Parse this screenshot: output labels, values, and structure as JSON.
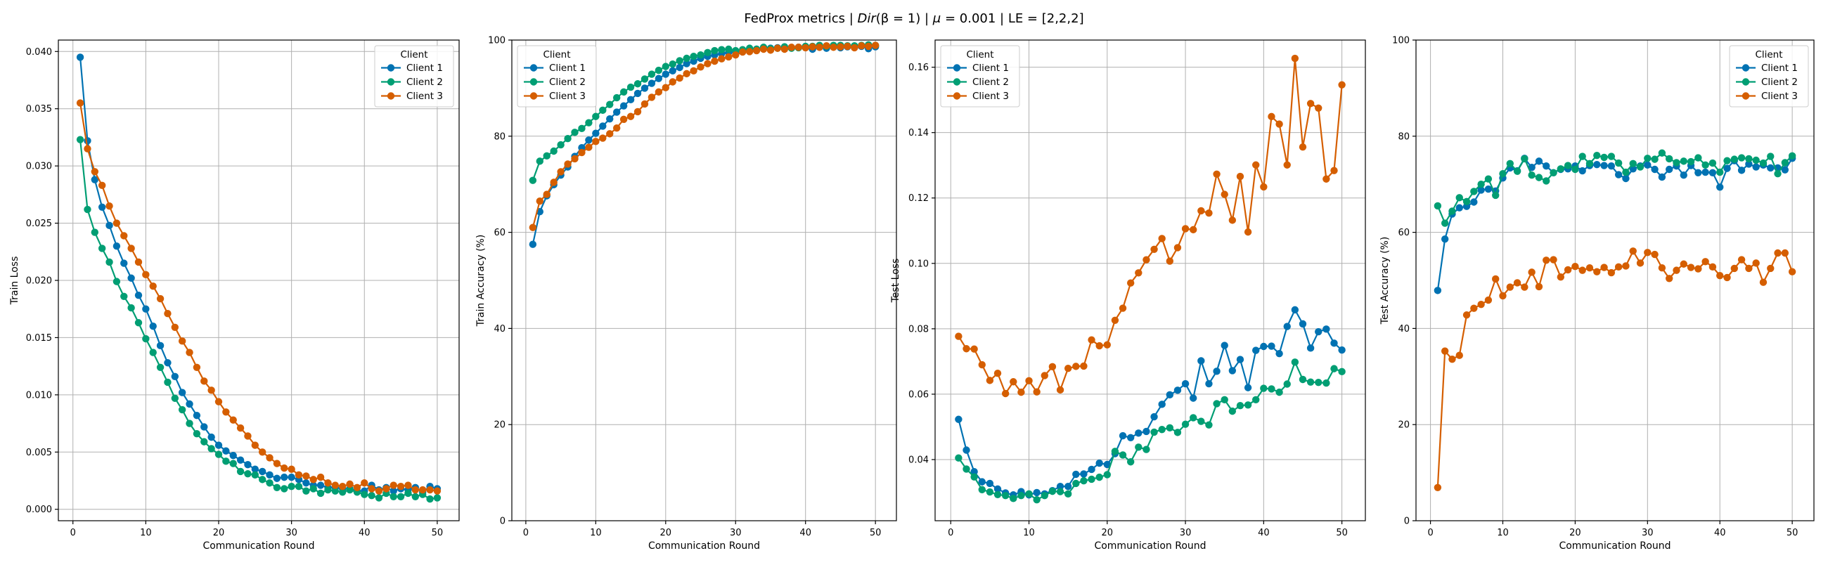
{
  "figure": {
    "title": "FedProx metrics | Dir(β = 1) | μ = 0.001 | LE = [2,2,2]",
    "title_parts": {
      "prefix": "FedProx metrics | ",
      "dir": "Dir",
      "beta": "(β = 1)",
      "mid": " | ",
      "mu": "μ",
      "mu_value": " = 0.001 | LE = [2,2,2]"
    }
  },
  "colors": {
    "Client 1": "#0072b2",
    "Client 2": "#009e73",
    "Client 3": "#d55e00",
    "grid": "#b0b0b0",
    "axes": "#000000"
  },
  "chart_data": [
    {
      "type": "line",
      "xlabel": "Communication Round",
      "ylabel": "Train Loss",
      "xlim": [
        -2.0,
        53.0
      ],
      "ylim": [
        -0.001,
        0.041
      ],
      "xticks": [
        0,
        10,
        20,
        30,
        40,
        50
      ],
      "xtick_labels": [
        "0",
        "10",
        "20",
        "30",
        "40",
        "50"
      ],
      "yticks": [
        0.0,
        0.005,
        0.01,
        0.015,
        0.02,
        0.025,
        0.03,
        0.035,
        0.04
      ],
      "ytick_labels": [
        "0.000",
        "0.005",
        "0.010",
        "0.015",
        "0.020",
        "0.025",
        "0.030",
        "0.035",
        "0.040"
      ],
      "grid": true,
      "legend": {
        "title": "Client",
        "placement": "top-right"
      },
      "x": [
        1,
        2,
        3,
        4,
        5,
        6,
        7,
        8,
        9,
        10,
        11,
        12,
        13,
        14,
        15,
        16,
        17,
        18,
        19,
        20,
        21,
        22,
        23,
        24,
        25,
        26,
        27,
        28,
        29,
        30,
        31,
        32,
        33,
        34,
        35,
        36,
        37,
        38,
        39,
        40,
        41,
        42,
        43,
        44,
        45,
        46,
        47,
        48,
        49,
        50
      ],
      "series": [
        {
          "name": "Client 1",
          "values": [
            0.0395,
            0.0322,
            0.0288,
            0.0264,
            0.0248,
            0.023,
            0.0215,
            0.0202,
            0.0187,
            0.0175,
            0.016,
            0.0143,
            0.0128,
            0.0116,
            0.0102,
            0.0092,
            0.0082,
            0.0072,
            0.0063,
            0.0056,
            0.0051,
            0.0047,
            0.0043,
            0.0039,
            0.0035,
            0.0033,
            0.003,
            0.0027,
            0.0028,
            0.0028,
            0.0026,
            0.0023,
            0.0021,
            0.0021,
            0.0019,
            0.0019,
            0.0018,
            0.0018,
            0.0016,
            0.0016,
            0.0021,
            0.0017,
            0.0019,
            0.0016,
            0.0018,
            0.0017,
            0.0019,
            0.0015,
            0.002,
            0.0018
          ]
        },
        {
          "name": "Client 2",
          "values": [
            0.0323,
            0.0262,
            0.0242,
            0.0228,
            0.0216,
            0.0199,
            0.0186,
            0.0176,
            0.0163,
            0.0149,
            0.0137,
            0.0124,
            0.0111,
            0.0097,
            0.0087,
            0.0075,
            0.0066,
            0.0059,
            0.0053,
            0.0048,
            0.0042,
            0.004,
            0.0033,
            0.0031,
            0.003,
            0.0026,
            0.0023,
            0.0019,
            0.0018,
            0.002,
            0.002,
            0.0016,
            0.0018,
            0.0014,
            0.0017,
            0.0016,
            0.0015,
            0.0017,
            0.0015,
            0.0013,
            0.0012,
            0.001,
            0.0014,
            0.0011,
            0.0011,
            0.0014,
            0.0011,
            0.0013,
            0.0009,
            0.001
          ]
        },
        {
          "name": "Client 3",
          "values": [
            0.0355,
            0.0315,
            0.0295,
            0.0283,
            0.0265,
            0.025,
            0.0239,
            0.0228,
            0.0216,
            0.0205,
            0.0195,
            0.0184,
            0.0171,
            0.0159,
            0.0147,
            0.0137,
            0.0124,
            0.0112,
            0.0104,
            0.0094,
            0.0085,
            0.0078,
            0.0071,
            0.0064,
            0.0056,
            0.005,
            0.0045,
            0.004,
            0.0036,
            0.0035,
            0.003,
            0.0029,
            0.0026,
            0.0028,
            0.0023,
            0.0021,
            0.002,
            0.0022,
            0.0019,
            0.0023,
            0.0018,
            0.0016,
            0.0018,
            0.0021,
            0.002,
            0.0021,
            0.0017,
            0.0017,
            0.0017,
            0.0016
          ]
        }
      ]
    },
    {
      "type": "line",
      "xlabel": "Communication Round",
      "ylabel": "Train Accuracy (%)",
      "xlim": [
        -2.0,
        53.0
      ],
      "ylim": [
        0,
        100
      ],
      "xticks": [
        0,
        10,
        20,
        30,
        40,
        50
      ],
      "xtick_labels": [
        "0",
        "10",
        "20",
        "30",
        "40",
        "50"
      ],
      "yticks": [
        0,
        20,
        40,
        60,
        80,
        100
      ],
      "ytick_labels": [
        "0",
        "20",
        "40",
        "60",
        "80",
        "100"
      ],
      "grid": true,
      "legend": {
        "title": "Client",
        "placement": "top-left"
      },
      "x": [
        1,
        2,
        3,
        4,
        5,
        6,
        7,
        8,
        9,
        10,
        11,
        12,
        13,
        14,
        15,
        16,
        17,
        18,
        19,
        20,
        21,
        22,
        23,
        24,
        25,
        26,
        27,
        28,
        29,
        30,
        31,
        32,
        33,
        34,
        35,
        36,
        37,
        38,
        39,
        40,
        41,
        42,
        43,
        44,
        45,
        46,
        47,
        48,
        49,
        50
      ],
      "series": [
        {
          "name": "Client 1",
          "values": [
            57.5,
            64.3,
            67.6,
            69.9,
            71.9,
            73.6,
            75.8,
            77.6,
            79.2,
            80.6,
            82.1,
            83.6,
            85.0,
            86.3,
            87.6,
            88.9,
            90.0,
            91.0,
            92.0,
            92.9,
            93.6,
            94.3,
            95.1,
            95.6,
            96.2,
            96.6,
            96.9,
            97.2,
            97.4,
            97.6,
            97.8,
            97.9,
            98.1,
            98.2,
            98.3,
            98.4,
            98.4,
            98.4,
            98.5,
            98.5,
            98.1,
            98.5,
            98.3,
            98.6,
            98.4,
            98.6,
            98.5,
            98.7,
            98.2,
            98.6
          ]
        },
        {
          "name": "Client 2",
          "values": [
            70.8,
            74.8,
            75.9,
            76.9,
            78.2,
            79.5,
            80.8,
            81.6,
            82.8,
            84.1,
            85.4,
            86.6,
            88.0,
            89.2,
            90.2,
            90.9,
            91.9,
            92.9,
            93.7,
            94.5,
            95.0,
            95.7,
            96.2,
            96.6,
            96.9,
            97.4,
            97.8,
            98.0,
            98.1,
            97.8,
            98.0,
            98.3,
            98.1,
            98.5,
            98.2,
            98.3,
            98.6,
            98.3,
            98.4,
            98.7,
            98.7,
            98.9,
            98.7,
            98.9,
            98.9,
            98.8,
            98.8,
            98.9,
            99.0,
            98.9
          ]
        },
        {
          "name": "Client 3",
          "values": [
            61.0,
            66.5,
            67.9,
            70.4,
            72.6,
            74.2,
            75.3,
            76.6,
            77.7,
            78.9,
            79.6,
            80.5,
            81.7,
            83.5,
            84.1,
            85.1,
            86.7,
            88.1,
            89.2,
            90.1,
            91.3,
            92.1,
            93.0,
            93.6,
            94.4,
            95.1,
            95.6,
            96.1,
            96.5,
            96.9,
            97.5,
            97.6,
            97.8,
            98.1,
            97.9,
            98.3,
            98.1,
            98.5,
            98.5,
            98.4,
            98.6,
            98.5,
            98.8,
            98.5,
            98.6,
            98.7,
            98.4,
            98.8,
            98.7,
            98.9
          ]
        }
      ]
    },
    {
      "type": "line",
      "xlabel": "Communication Round",
      "ylabel": "Test Loss",
      "xlim": [
        -2.0,
        53.0
      ],
      "ylim": [
        0.0213,
        0.1683
      ],
      "xticks": [
        0,
        10,
        20,
        30,
        40,
        50
      ],
      "xtick_labels": [
        "0",
        "10",
        "20",
        "30",
        "40",
        "50"
      ],
      "yticks": [
        0.04,
        0.06,
        0.08,
        0.1,
        0.12,
        0.14,
        0.16
      ],
      "ytick_labels": [
        "0.04",
        "0.06",
        "0.08",
        "0.10",
        "0.12",
        "0.14",
        "0.16"
      ],
      "grid": true,
      "legend": {
        "title": "Client",
        "placement": "top-left"
      },
      "x": [
        1,
        2,
        3,
        4,
        5,
        6,
        7,
        8,
        9,
        10,
        11,
        12,
        13,
        14,
        15,
        16,
        17,
        18,
        19,
        20,
        21,
        22,
        23,
        24,
        25,
        26,
        27,
        28,
        29,
        30,
        31,
        32,
        33,
        34,
        35,
        36,
        37,
        38,
        39,
        40,
        41,
        42,
        43,
        44,
        45,
        46,
        47,
        48,
        49,
        50
      ],
      "series": [
        {
          "name": "Client 1",
          "values": [
            0.0523,
            0.0429,
            0.0363,
            0.0332,
            0.0327,
            0.031,
            0.0298,
            0.0292,
            0.0302,
            0.0292,
            0.0299,
            0.0295,
            0.0305,
            0.0318,
            0.0318,
            0.0355,
            0.0356,
            0.037,
            0.0389,
            0.0385,
            0.0418,
            0.0473,
            0.0467,
            0.0481,
            0.0486,
            0.0531,
            0.0569,
            0.0598,
            0.0612,
            0.0632,
            0.0588,
            0.0702,
            0.0632,
            0.067,
            0.0749,
            0.0672,
            0.0706,
            0.062,
            0.0734,
            0.0746,
            0.0747,
            0.0724,
            0.0807,
            0.0858,
            0.0815,
            0.0741,
            0.0791,
            0.0799,
            0.0756,
            0.0735
          ]
        },
        {
          "name": "Client 2",
          "values": [
            0.0405,
            0.0371,
            0.0347,
            0.0308,
            0.0301,
            0.0293,
            0.029,
            0.0281,
            0.029,
            0.0295,
            0.0277,
            0.029,
            0.0303,
            0.0302,
            0.0295,
            0.0327,
            0.0335,
            0.034,
            0.0346,
            0.0354,
            0.0425,
            0.0414,
            0.0393,
            0.0438,
            0.0431,
            0.0484,
            0.0492,
            0.0497,
            0.0483,
            0.0508,
            0.0528,
            0.0517,
            0.0506,
            0.0571,
            0.0583,
            0.0548,
            0.0565,
            0.0567,
            0.0583,
            0.0618,
            0.0616,
            0.0606,
            0.0631,
            0.0698,
            0.0645,
            0.0637,
            0.0636,
            0.0634,
            0.0678,
            0.0669
          ]
        },
        {
          "name": "Client 3",
          "values": [
            0.0777,
            0.0739,
            0.0738,
            0.069,
            0.0642,
            0.0664,
            0.0602,
            0.0638,
            0.0606,
            0.0641,
            0.0607,
            0.0657,
            0.0684,
            0.0613,
            0.0679,
            0.0685,
            0.0686,
            0.0766,
            0.0748,
            0.0751,
            0.0826,
            0.0863,
            0.094,
            0.0971,
            0.1011,
            0.1043,
            0.1076,
            0.1007,
            0.1048,
            0.1106,
            0.1103,
            0.1161,
            0.1154,
            0.1273,
            0.1211,
            0.1132,
            0.1266,
            0.1096,
            0.1301,
            0.1234,
            0.1449,
            0.1426,
            0.1301,
            0.1627,
            0.1356,
            0.1489,
            0.1475,
            0.1258,
            0.1284,
            0.1546
          ]
        }
      ]
    },
    {
      "type": "line",
      "xlabel": "Communication Round",
      "ylabel": "Test Accuracy (%)",
      "xlim": [
        -2.0,
        53.0
      ],
      "ylim": [
        0,
        100
      ],
      "xticks": [
        0,
        10,
        20,
        30,
        40,
        50
      ],
      "xtick_labels": [
        "0",
        "10",
        "20",
        "30",
        "40",
        "50"
      ],
      "yticks": [
        0,
        20,
        40,
        60,
        80,
        100
      ],
      "ytick_labels": [
        "0",
        "20",
        "40",
        "60",
        "80",
        "100"
      ],
      "grid": true,
      "legend": {
        "title": "Client",
        "placement": "top-right"
      },
      "x": [
        1,
        2,
        3,
        4,
        5,
        6,
        7,
        8,
        9,
        10,
        11,
        12,
        13,
        14,
        15,
        16,
        17,
        18,
        19,
        20,
        21,
        22,
        23,
        24,
        25,
        26,
        27,
        28,
        29,
        30,
        31,
        32,
        33,
        34,
        35,
        36,
        37,
        38,
        39,
        40,
        41,
        42,
        43,
        44,
        45,
        46,
        47,
        48,
        49,
        50
      ],
      "series": [
        {
          "name": "Client 1",
          "values": [
            47.9,
            58.6,
            63.8,
            65.1,
            65.4,
            66.3,
            68.8,
            69.0,
            68.6,
            71.3,
            73.4,
            72.8,
            75.4,
            73.5,
            74.8,
            73.8,
            72.4,
            73.1,
            73.2,
            73.8,
            72.8,
            73.9,
            74.1,
            73.9,
            73.8,
            72.0,
            71.2,
            73.2,
            73.8,
            74.0,
            73.1,
            71.5,
            73.1,
            73.8,
            71.9,
            73.9,
            72.4,
            72.5,
            72.4,
            69.4,
            73.3,
            74.9,
            72.9,
            74.2,
            73.6,
            74.0,
            73.4,
            73.4,
            73.0,
            75.4
          ]
        },
        {
          "name": "Client 2",
          "values": [
            65.5,
            61.9,
            64.4,
            67.2,
            66.4,
            68.5,
            70.0,
            71.1,
            67.7,
            72.2,
            74.3,
            72.7,
            75.3,
            71.9,
            71.4,
            70.7,
            72.4,
            73.2,
            73.9,
            73.1,
            75.8,
            74.3,
            76.0,
            75.6,
            75.8,
            74.4,
            72.5,
            74.3,
            73.6,
            75.4,
            75.2,
            76.5,
            75.3,
            74.5,
            74.8,
            74.7,
            75.5,
            74.0,
            74.4,
            72.5,
            74.9,
            75.2,
            75.5,
            75.3,
            75.0,
            74.4,
            75.8,
            72.2,
            74.5,
            75.9
          ]
        },
        {
          "name": "Client 3",
          "values": [
            6.9,
            35.3,
            33.6,
            34.4,
            42.8,
            44.2,
            45.0,
            45.9,
            50.3,
            46.8,
            48.6,
            49.5,
            48.6,
            51.7,
            48.7,
            54.2,
            54.3,
            50.7,
            52.2,
            52.9,
            52.1,
            52.6,
            51.8,
            52.7,
            51.6,
            52.8,
            53.0,
            56.1,
            53.6,
            55.8,
            55.4,
            52.6,
            50.4,
            52.1,
            53.4,
            52.7,
            52.4,
            53.9,
            52.8,
            51.0,
            50.6,
            52.5,
            54.3,
            52.5,
            53.6,
            49.6,
            52.5,
            55.7,
            55.7,
            51.8
          ]
        }
      ]
    }
  ]
}
